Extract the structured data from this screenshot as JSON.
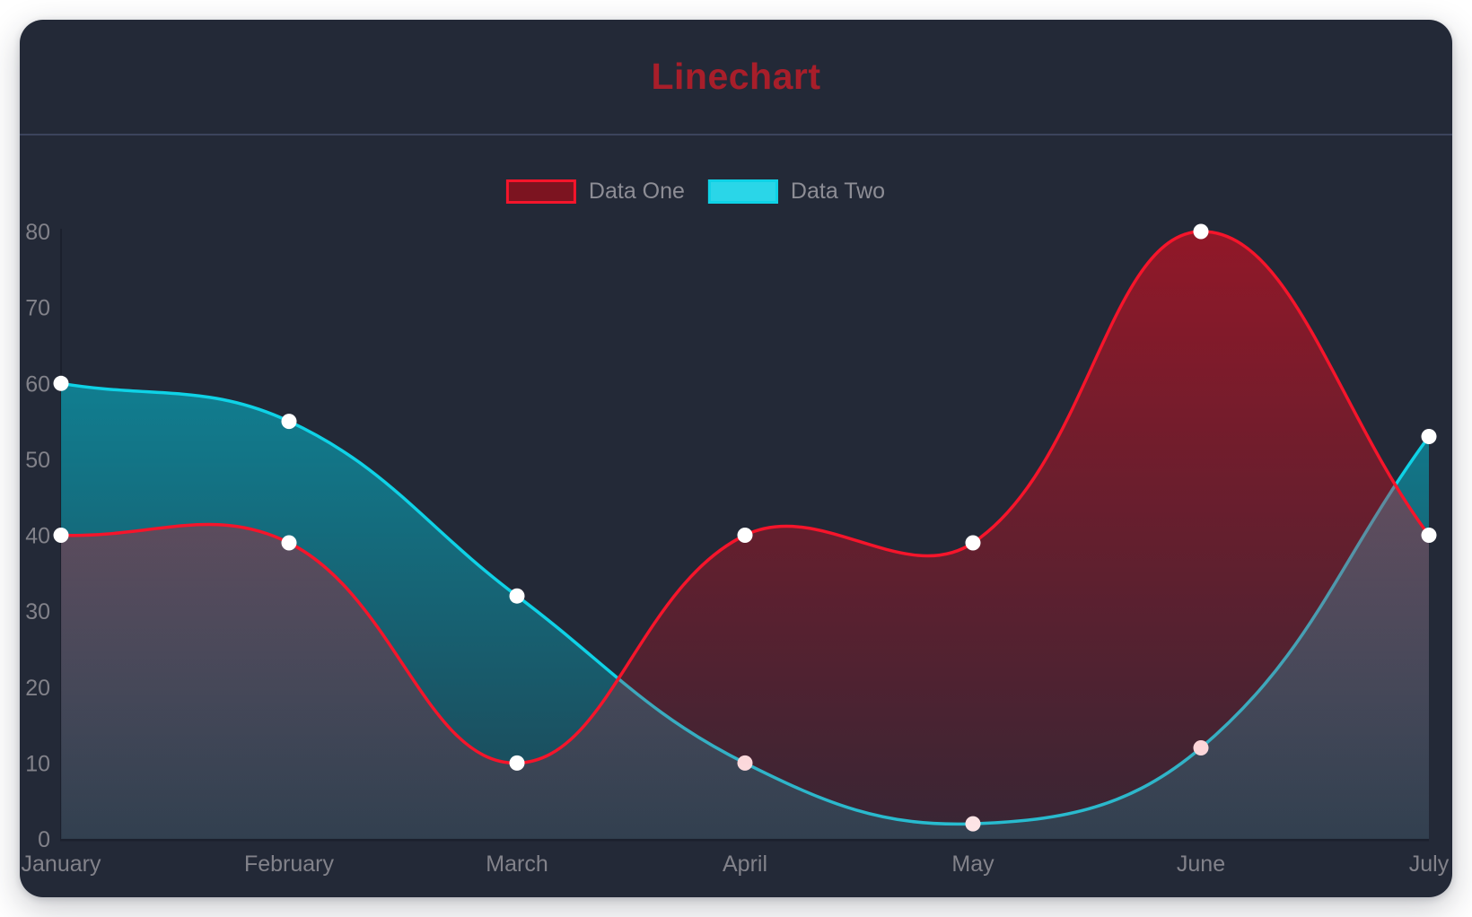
{
  "header": {
    "title": "Linechart",
    "title_color": "#a81e2a"
  },
  "theme": {
    "page_bg": "#ffffff",
    "card_bg": "#232937",
    "divider_color": "#3c445c",
    "axis_line_color": "#1b202d",
    "tick_label_color": "#82828a",
    "legend_label_color": "#8d8d95",
    "point_fill": "#ffffff"
  },
  "legend": {
    "items": [
      {
        "label": "Data One",
        "swatch_fill": "#7c1420",
        "swatch_border": "#f5152b"
      },
      {
        "label": "Data Two",
        "swatch_fill": "#2ad6e8",
        "swatch_border": "#0fd2e6"
      }
    ]
  },
  "chart_data": {
    "type": "line",
    "title": "Linechart",
    "x": [
      "January",
      "February",
      "March",
      "April",
      "May",
      "June",
      "July"
    ],
    "series": [
      {
        "name": "Data One",
        "values": [
          40,
          39,
          10,
          40,
          39,
          80,
          40
        ],
        "line_color": "#f5152b",
        "area_top": "rgba(235,10,28,0.55)",
        "area_bottom": "rgba(235,10,28,0.10)"
      },
      {
        "name": "Data Two",
        "values": [
          60,
          55,
          32,
          10,
          2,
          12,
          53
        ],
        "line_color": "#0fd2e6",
        "area_top": "rgba(0,200,222,0.65)",
        "area_bottom": "rgba(0,200,222,0.18)"
      }
    ],
    "ylim": [
      0,
      80
    ],
    "yticks": [
      0,
      10,
      20,
      30,
      40,
      50,
      60,
      70,
      80
    ],
    "xlabel": "",
    "ylabel": "",
    "curve_tension": 0.4,
    "point_radius": 8.5,
    "point_color": "#ffffff",
    "grid": false,
    "legend_position": "top-center",
    "fill": "to-zero-baseline"
  }
}
